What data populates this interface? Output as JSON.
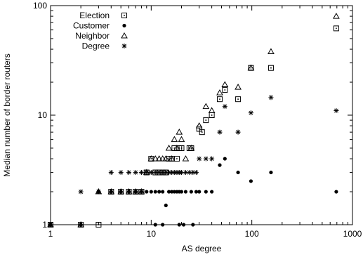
{
  "chart_data": {
    "type": "scatter",
    "title": "",
    "xlabel": "AS degree",
    "ylabel": "Median number of border routers",
    "x_scale": "log",
    "y_scale": "log",
    "xlim": [
      1,
      1000
    ],
    "ylim": [
      1,
      100
    ],
    "x_ticks": [
      "1",
      "10",
      "100",
      "1000"
    ],
    "y_ticks": [
      "1",
      "10",
      "100"
    ],
    "grid": false,
    "legend_position": "top-left",
    "series": [
      {
        "name": "Election",
        "marker": "square-dot",
        "points": [
          [
            1,
            1
          ],
          [
            2,
            1
          ],
          [
            3,
            1
          ],
          [
            4,
            2
          ],
          [
            5,
            2
          ],
          [
            6,
            2
          ],
          [
            7,
            2
          ],
          [
            8,
            2
          ],
          [
            9,
            3
          ],
          [
            10,
            4
          ],
          [
            11,
            3
          ],
          [
            12,
            3
          ],
          [
            13,
            3
          ],
          [
            14,
            3
          ],
          [
            15,
            4
          ],
          [
            16,
            4
          ],
          [
            17,
            5
          ],
          [
            18,
            4
          ],
          [
            19,
            5
          ],
          [
            20,
            5
          ],
          [
            24,
            5
          ],
          [
            25,
            5
          ],
          [
            30,
            7.5
          ],
          [
            32,
            7
          ],
          [
            35,
            9
          ],
          [
            40,
            10
          ],
          [
            48,
            14
          ],
          [
            54,
            17
          ],
          [
            73,
            14
          ],
          [
            98,
            27
          ],
          [
            155,
            27
          ],
          [
            690,
            62
          ]
        ]
      },
      {
        "name": "Customer",
        "marker": "filled-circle",
        "points": [
          [
            1,
            1
          ],
          [
            2,
            1
          ],
          [
            3,
            2
          ],
          [
            4,
            2
          ],
          [
            5,
            2
          ],
          [
            6,
            2
          ],
          [
            7,
            2
          ],
          [
            8,
            2
          ],
          [
            9,
            2
          ],
          [
            10,
            2
          ],
          [
            11,
            2
          ],
          [
            12,
            2
          ],
          [
            13,
            2
          ],
          [
            14,
            1.5
          ],
          [
            15,
            2
          ],
          [
            16,
            2
          ],
          [
            17,
            2
          ],
          [
            18,
            2
          ],
          [
            19,
            2
          ],
          [
            20,
            2
          ],
          [
            22,
            2
          ],
          [
            25,
            2
          ],
          [
            28,
            2
          ],
          [
            30,
            2
          ],
          [
            35,
            2
          ],
          [
            40,
            2
          ],
          [
            48,
            3.5
          ],
          [
            54,
            4
          ],
          [
            73,
            3
          ],
          [
            98,
            2.5
          ],
          [
            155,
            3
          ],
          [
            690,
            2
          ],
          [
            11,
            1
          ],
          [
            13,
            1
          ],
          [
            19,
            1
          ],
          [
            21,
            1
          ],
          [
            26,
            1
          ]
        ]
      },
      {
        "name": "Neighbor",
        "marker": "triangle",
        "points": [
          [
            1,
            1
          ],
          [
            2,
            1
          ],
          [
            3,
            2
          ],
          [
            4,
            2
          ],
          [
            5,
            2
          ],
          [
            6,
            2
          ],
          [
            7,
            2
          ],
          [
            8,
            2
          ],
          [
            9,
            3
          ],
          [
            10,
            4
          ],
          [
            11,
            4
          ],
          [
            12,
            4
          ],
          [
            13,
            4
          ],
          [
            14,
            4
          ],
          [
            15,
            5
          ],
          [
            16,
            4
          ],
          [
            17,
            6
          ],
          [
            18,
            5
          ],
          [
            19,
            7
          ],
          [
            20,
            6
          ],
          [
            22,
            4
          ],
          [
            25,
            5
          ],
          [
            30,
            8
          ],
          [
            35,
            12
          ],
          [
            40,
            11
          ],
          [
            48,
            16
          ],
          [
            54,
            19
          ],
          [
            73,
            18
          ],
          [
            98,
            27
          ],
          [
            155,
            38
          ],
          [
            690,
            80
          ]
        ]
      },
      {
        "name": "Degree",
        "marker": "asterisk",
        "points": [
          [
            1,
            1
          ],
          [
            2,
            2
          ],
          [
            3,
            2
          ],
          [
            4,
            3
          ],
          [
            5,
            3
          ],
          [
            6,
            3
          ],
          [
            7,
            3
          ],
          [
            8,
            3
          ],
          [
            9,
            3
          ],
          [
            10,
            3
          ],
          [
            11,
            3
          ],
          [
            12,
            3
          ],
          [
            13,
            3
          ],
          [
            14,
            3
          ],
          [
            15,
            3
          ],
          [
            16,
            3
          ],
          [
            17,
            3
          ],
          [
            18,
            3
          ],
          [
            19,
            3
          ],
          [
            20,
            3
          ],
          [
            22,
            3
          ],
          [
            24,
            3
          ],
          [
            26,
            3
          ],
          [
            28,
            3
          ],
          [
            30,
            4
          ],
          [
            35,
            4
          ],
          [
            40,
            4
          ],
          [
            48,
            7
          ],
          [
            54,
            12
          ],
          [
            73,
            7
          ],
          [
            98,
            10.5
          ],
          [
            155,
            14.5
          ],
          [
            690,
            11
          ]
        ]
      }
    ]
  }
}
